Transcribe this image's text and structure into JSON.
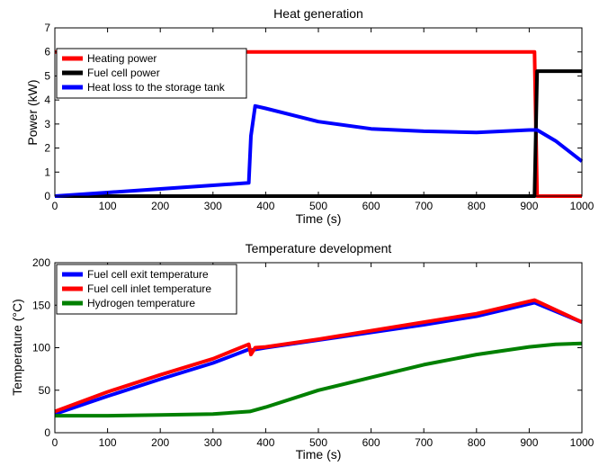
{
  "chart_data": [
    {
      "type": "line",
      "title": "Heat generation",
      "xlabel": "Time (s)",
      "ylabel": "Power (kW)",
      "xlim": [
        0,
        1000
      ],
      "ylim": [
        0,
        7
      ],
      "xticks": [
        "0",
        "100",
        "200",
        "300",
        "400",
        "500",
        "600",
        "700",
        "800",
        "900",
        "1000"
      ],
      "yticks": [
        "0",
        "1",
        "2",
        "3",
        "4",
        "5",
        "6",
        "7"
      ],
      "grid": false,
      "legend_position": "upper-left",
      "series": [
        {
          "name": "Heating power",
          "color": "#ff0000",
          "x": [
            0,
            910,
            915,
            1000
          ],
          "y": [
            6,
            6,
            0,
            0
          ]
        },
        {
          "name": "Fuel cell power",
          "color": "#000000",
          "x": [
            0,
            910,
            915,
            1000
          ],
          "y": [
            0,
            0,
            5.2,
            5.2
          ]
        },
        {
          "name": "Heat loss to the storage tank",
          "color": "#0000ff",
          "x": [
            0,
            100,
            200,
            300,
            368,
            372,
            380,
            400,
            500,
            600,
            700,
            800,
            900,
            915,
            950,
            1000
          ],
          "y": [
            0,
            0.15,
            0.3,
            0.45,
            0.55,
            2.5,
            3.75,
            3.65,
            3.1,
            2.8,
            2.7,
            2.65,
            2.75,
            2.75,
            2.3,
            1.45
          ]
        }
      ]
    },
    {
      "type": "line",
      "title": "Temperature development",
      "xlabel": "Time (s)",
      "ylabel": "Temperature (°C)",
      "xlim": [
        0,
        1000
      ],
      "ylim": [
        0,
        200
      ],
      "xticks": [
        "0",
        "100",
        "200",
        "300",
        "400",
        "500",
        "600",
        "700",
        "800",
        "900",
        "1000"
      ],
      "yticks": [
        "0",
        "50",
        "100",
        "150",
        "200"
      ],
      "grid": false,
      "legend_position": "upper-left",
      "series": [
        {
          "name": "Fuel cell exit temperature",
          "color": "#0000ff",
          "x": [
            0,
            100,
            200,
            300,
            368,
            372,
            400,
            500,
            600,
            700,
            800,
            910,
            1000
          ],
          "y": [
            22,
            43,
            63,
            82,
            98,
            97,
            100,
            109,
            118,
            127,
            137,
            153,
            130
          ]
        },
        {
          "name": "Fuel cell inlet temperature",
          "color": "#ff0000",
          "x": [
            0,
            100,
            200,
            300,
            368,
            372,
            376,
            380,
            400,
            500,
            600,
            700,
            800,
            910,
            1000
          ],
          "y": [
            25,
            48,
            68,
            87,
            104,
            92,
            96,
            100,
            101,
            110,
            120,
            130,
            140,
            156,
            130
          ]
        },
        {
          "name": "Hydrogen temperature",
          "color": "#008000",
          "x": [
            0,
            100,
            200,
            300,
            370,
            400,
            500,
            600,
            700,
            800,
            900,
            950,
            1000
          ],
          "y": [
            20,
            20,
            21,
            22,
            25,
            30,
            50,
            65,
            80,
            92,
            101,
            104,
            105
          ]
        }
      ]
    }
  ]
}
